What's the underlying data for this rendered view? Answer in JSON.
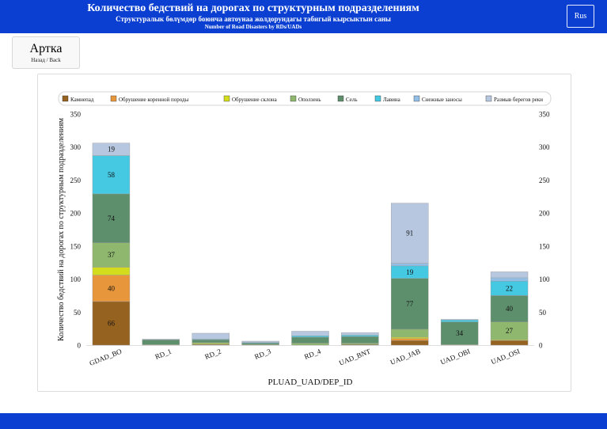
{
  "header": {
    "title": "Количество бедствий на дорогах по структурным подразделениям",
    "subtitle": "Структуралык бөлүмдөр боюнча автоунаа жолдорундагы табигый кырсыктын саны",
    "subtitle_en": "Number of Road Disasters by RDs/UADs",
    "lang_label": "Rus"
  },
  "back_button": {
    "label": "Артка",
    "sublabel": "Назад / Back"
  },
  "colors": {
    "header": "#0a3fd1",
    "series": [
      "#96621f",
      "#e8963c",
      "#d4dc1e",
      "#8fb86e",
      "#5e8f6c",
      "#45c8e2",
      "#93bfe6",
      "#b7c7e0"
    ]
  },
  "chart_data": {
    "type": "bar",
    "stacked": true,
    "title": "",
    "xlabel": "PLUAD_UAD/DEP_ID",
    "ylabel": "Количество бедствий на дорогах по структурным подразделениям",
    "ylim": [
      0,
      350
    ],
    "yticks": [
      "0",
      "50",
      "100",
      "150",
      "200",
      "250",
      "300",
      "350"
    ],
    "categories": [
      "GDAD_BO",
      "RD_1",
      "RD_2",
      "RD_3",
      "RD_4",
      "UAD_BNT",
      "UAD_JAB",
      "UAD_OBI",
      "UAD_OSI"
    ],
    "legend_position": "top",
    "grid": false,
    "series": [
      {
        "name": "Камнепад",
        "values": [
          66,
          0,
          1,
          0,
          0,
          1,
          7,
          0,
          7
        ]
      },
      {
        "name": "Обрушение коренной породы",
        "values": [
          40,
          0,
          0,
          0,
          0,
          0,
          3,
          0,
          0
        ]
      },
      {
        "name": "Обрушение склона",
        "values": [
          12,
          0,
          1,
          0,
          0,
          0,
          2,
          0,
          1
        ]
      },
      {
        "name": "Оползень",
        "values": [
          37,
          1,
          2,
          1,
          3,
          2,
          12,
          1,
          27
        ]
      },
      {
        "name": "Сель",
        "values": [
          74,
          7,
          4,
          2,
          9,
          10,
          77,
          34,
          40
        ]
      },
      {
        "name": "Лавина",
        "values": [
          58,
          0,
          1,
          1,
          2,
          2,
          19,
          3,
          22
        ]
      },
      {
        "name": "Снежные заносы",
        "values": [
          0,
          0,
          0,
          0,
          0,
          0,
          4,
          0,
          5
        ]
      },
      {
        "name": "Размыв берегов реки",
        "values": [
          19,
          1,
          9,
          2,
          7,
          4,
          91,
          1,
          9
        ]
      }
    ],
    "labels": [
      {
        "category": 0,
        "series": 0,
        "text": "66"
      },
      {
        "category": 0,
        "series": 1,
        "text": "40"
      },
      {
        "category": 0,
        "series": 3,
        "text": "37"
      },
      {
        "category": 0,
        "series": 4,
        "text": "74"
      },
      {
        "category": 0,
        "series": 5,
        "text": "58"
      },
      {
        "category": 0,
        "series": 7,
        "text": "19"
      },
      {
        "category": 6,
        "series": 4,
        "text": "77"
      },
      {
        "category": 6,
        "series": 5,
        "text": "19"
      },
      {
        "category": 6,
        "series": 7,
        "text": "91"
      },
      {
        "category": 7,
        "series": 4,
        "text": "34"
      },
      {
        "category": 8,
        "series": 3,
        "text": "27"
      },
      {
        "category": 8,
        "series": 4,
        "text": "40"
      },
      {
        "category": 8,
        "series": 5,
        "text": "22"
      }
    ]
  }
}
